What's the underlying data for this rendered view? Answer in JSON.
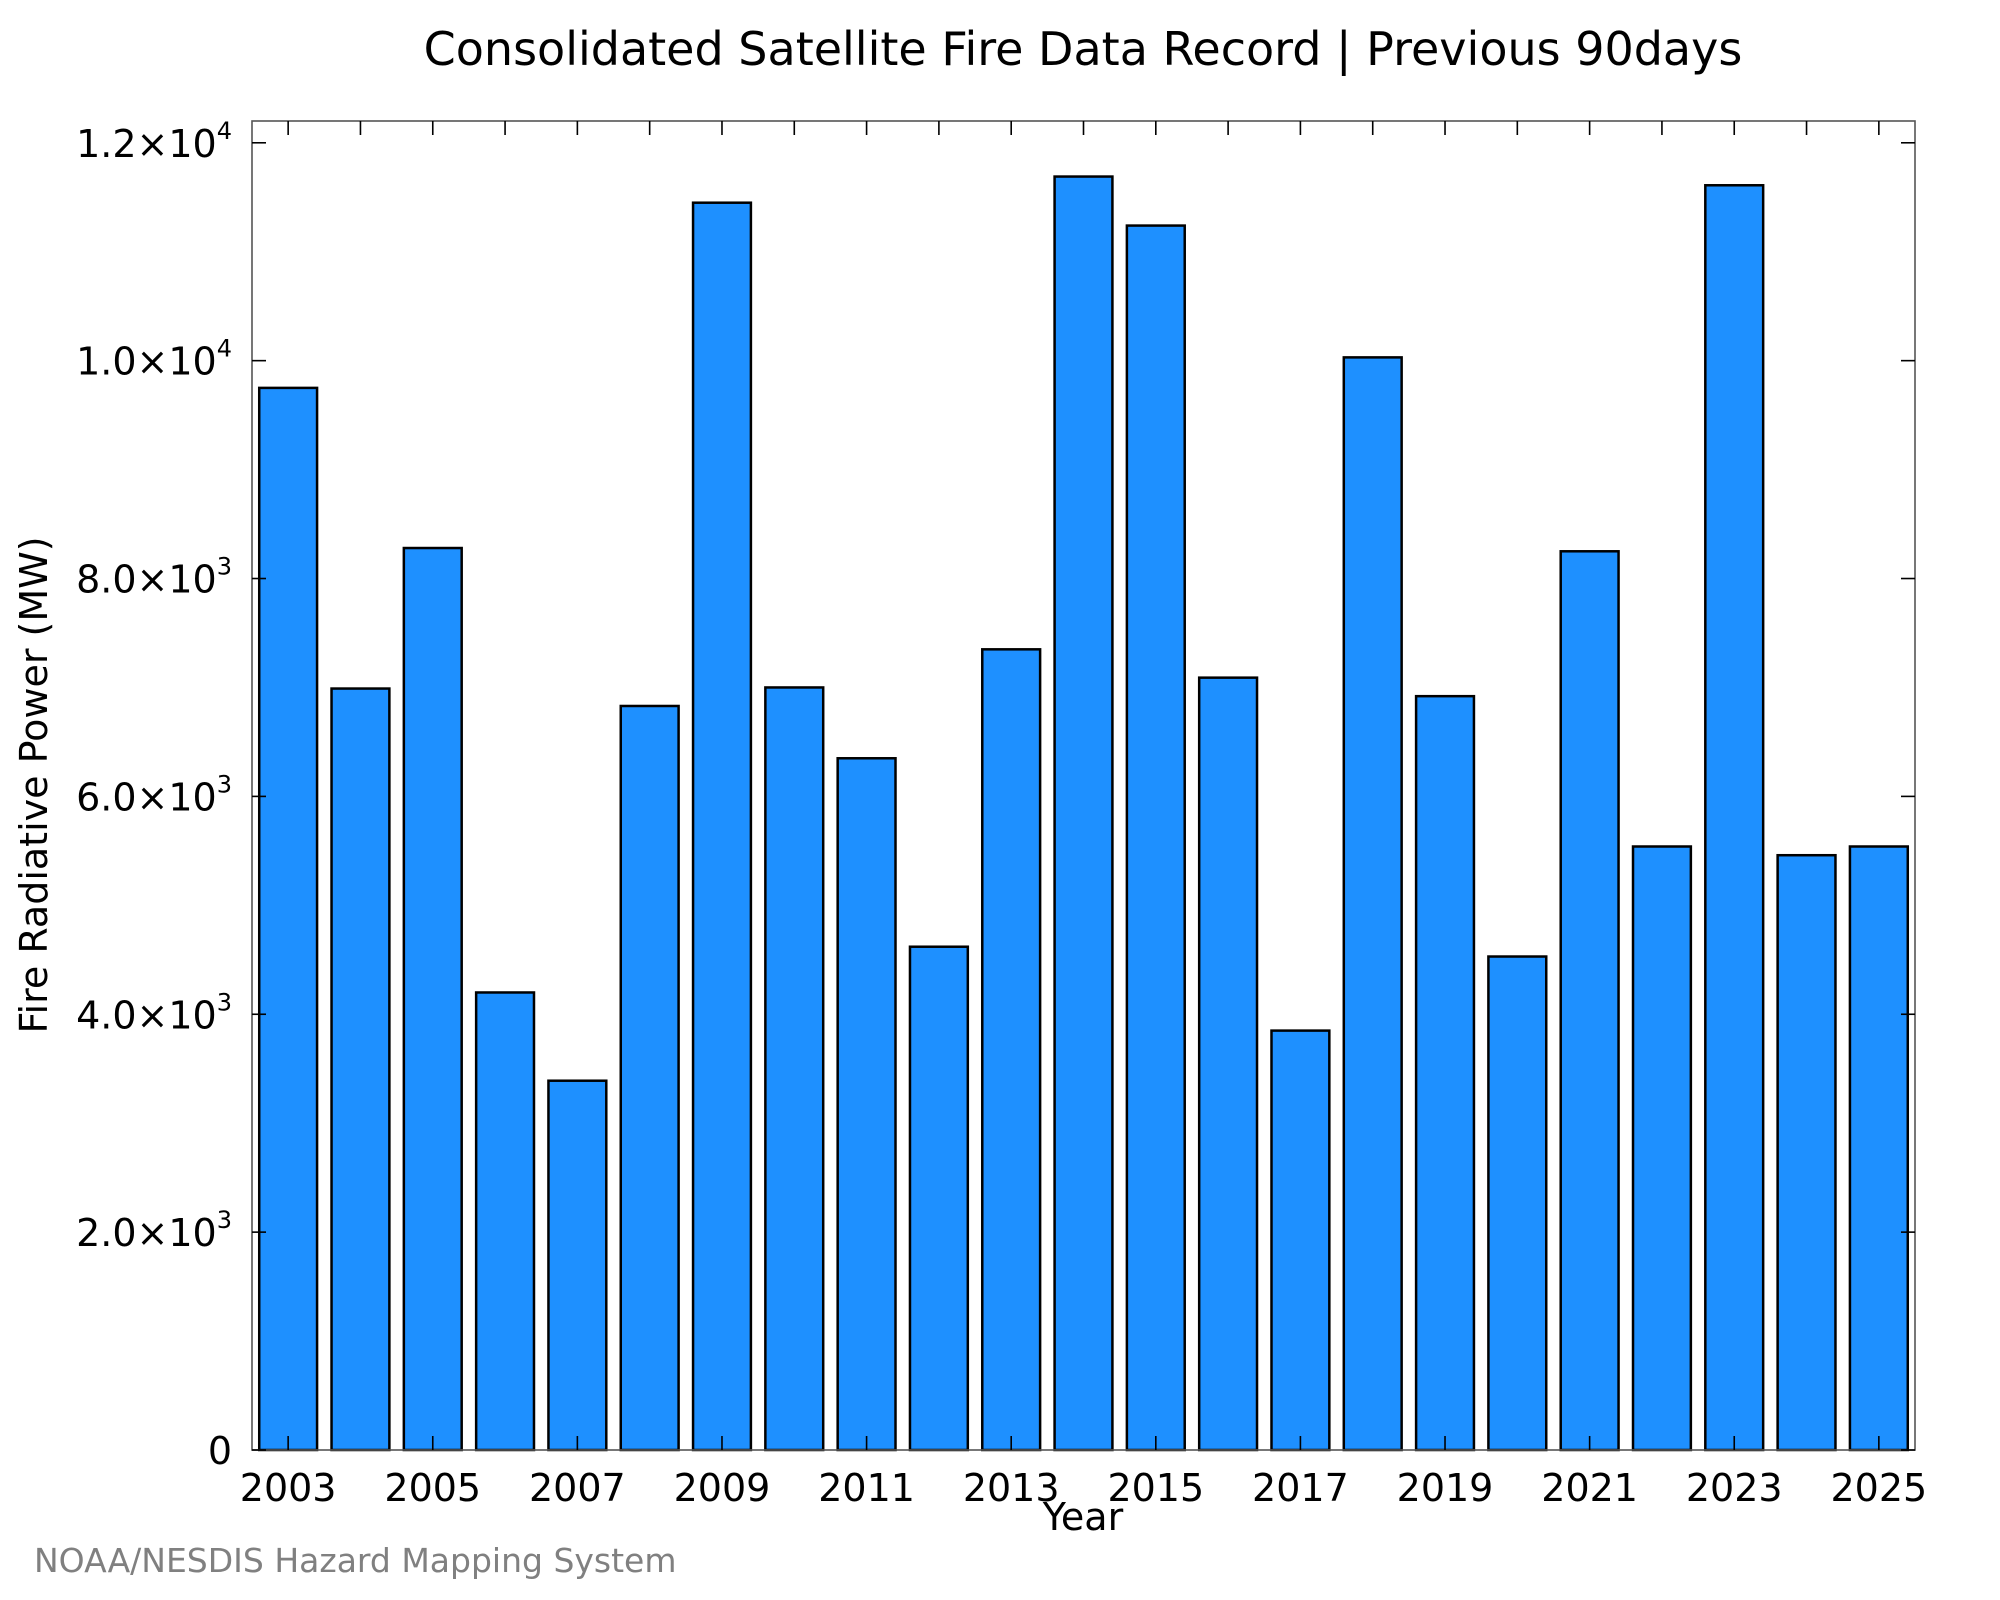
{
  "chart_data": {
    "type": "bar",
    "title": "Consolidated Satellite Fire Data Record | Previous 90days",
    "xlabel": "Year",
    "ylabel": "Fire Radiative Power (MW)",
    "categories": [
      "2003",
      "2004",
      "2005",
      "2006",
      "2007",
      "2008",
      "2009",
      "2010",
      "2011",
      "2012",
      "2013",
      "2014",
      "2015",
      "2016",
      "2017",
      "2018",
      "2019",
      "2020",
      "2021",
      "2022",
      "2023",
      "2024",
      "2025"
    ],
    "values": [
      9750,
      6990,
      8280,
      4200,
      3390,
      6830,
      11450,
      7000,
      6350,
      4620,
      7350,
      11690,
      11240,
      7090,
      3850,
      10030,
      6920,
      4530,
      8250,
      5540,
      11610,
      5460,
      5540
    ],
    "ylim": [
      0,
      12200
    ],
    "xticks": [
      "2003",
      "2005",
      "2007",
      "2009",
      "2011",
      "2013",
      "2015",
      "2017",
      "2019",
      "2021",
      "2023",
      "2025"
    ],
    "yticks": [
      {
        "value": 0,
        "mantissa": "0",
        "exp": ""
      },
      {
        "value": 2000,
        "mantissa": "2.0×10",
        "exp": "3"
      },
      {
        "value": 4000,
        "mantissa": "4.0×10",
        "exp": "3"
      },
      {
        "value": 6000,
        "mantissa": "6.0×10",
        "exp": "3"
      },
      {
        "value": 8000,
        "mantissa": "8.0×10",
        "exp": "3"
      },
      {
        "value": 10000,
        "mantissa": "1.0×10",
        "exp": "4"
      },
      {
        "value": 12000,
        "mantissa": "1.2×10",
        "exp": "4"
      }
    ],
    "bar_color": "#1e90ff",
    "bar_edge_color": "#000000",
    "grid": false,
    "legend": "none"
  },
  "credit": "NOAA/NESDIS Hazard Mapping System"
}
